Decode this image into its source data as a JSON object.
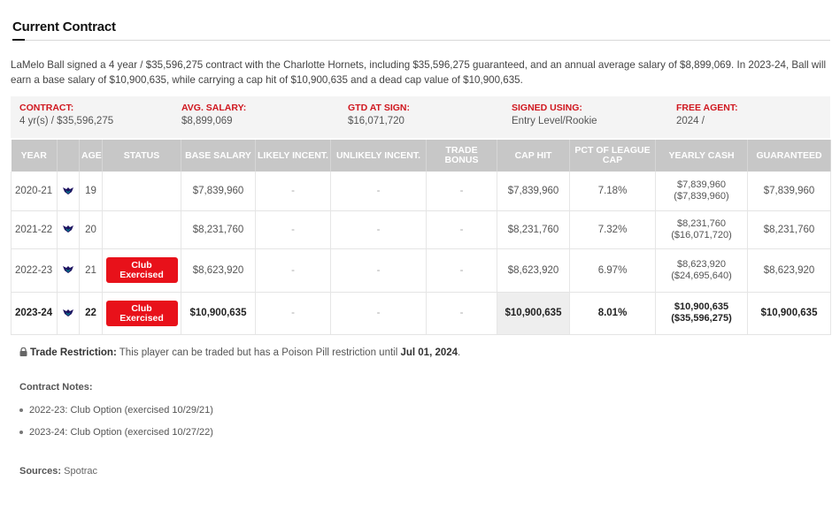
{
  "section_title": "Current Contract",
  "summary": "LaMelo Ball signed a 4 year / $35,596,275 contract with the Charlotte Hornets, including $35,596,275 guaranteed, and an annual average salary of $8,899,069. In 2023-24, Ball will earn a base salary of $10,900,635, while carrying a cap hit of $10,900,635 and a dead cap value of $10,900,635.",
  "info_bar": [
    {
      "label": "CONTRACT:",
      "value": "4 yr(s) / $35,596,275"
    },
    {
      "label": "AVG. SALARY:",
      "value": "$8,899,069"
    },
    {
      "label": "GTD AT SIGN:",
      "value": "$16,071,720"
    },
    {
      "label": "SIGNED USING:",
      "value": "Entry Level/Rookie"
    },
    {
      "label": "FREE AGENT:",
      "value": "2024 /"
    }
  ],
  "table": {
    "headers": [
      "YEAR",
      "",
      "AGE",
      "STATUS",
      "BASE SALARY",
      "LIKELY INCENT.",
      "UNLIKELY INCENT.",
      "TRADE BONUS",
      "CAP HIT",
      "PCT OF LEAGUE CAP",
      "YEARLY CASH",
      "GUARANTEED"
    ],
    "rows": [
      {
        "year": "2020-21",
        "age": "19",
        "status": "",
        "base_salary": "$7,839,960",
        "likely": "-",
        "unlikely": "-",
        "trade_bonus": "-",
        "cap_hit": "$7,839,960",
        "pct_cap": "7.18%",
        "cash": "$7,839,960",
        "cash_cumulative": "($7,839,960)",
        "guaranteed": "$7,839,960"
      },
      {
        "year": "2021-22",
        "age": "20",
        "status": "",
        "base_salary": "$8,231,760",
        "likely": "-",
        "unlikely": "-",
        "trade_bonus": "-",
        "cap_hit": "$8,231,760",
        "pct_cap": "7.32%",
        "cash": "$8,231,760",
        "cash_cumulative": "($16,071,720)",
        "guaranteed": "$8,231,760"
      },
      {
        "year": "2022-23",
        "age": "21",
        "status": "Club Exercised",
        "base_salary": "$8,623,920",
        "likely": "-",
        "unlikely": "-",
        "trade_bonus": "-",
        "cap_hit": "$8,623,920",
        "pct_cap": "6.97%",
        "cash": "$8,623,920",
        "cash_cumulative": "($24,695,640)",
        "guaranteed": "$8,623,920"
      },
      {
        "year": "2023-24",
        "age": "22",
        "status": "Club Exercised",
        "base_salary": "$10,900,635",
        "likely": "-",
        "unlikely": "-",
        "trade_bonus": "-",
        "cap_hit": "$10,900,635",
        "pct_cap": "8.01%",
        "cash": "$10,900,635",
        "cash_cumulative": "($35,596,275)",
        "guaranteed": "$10,900,635"
      }
    ]
  },
  "restriction": {
    "label": "Trade Restriction:",
    "text": " This player can be traded but has a Poison Pill restriction until ",
    "date": "Jul 01, 2024",
    "end": "."
  },
  "notes": {
    "title": "Contract Notes:",
    "items": [
      "2022-23: Club Option (exercised 10/29/21)",
      "2023-24: Club Option (exercised 10/27/22)"
    ]
  },
  "sources": {
    "label": "Sources:",
    "value": " Spotrac"
  },
  "icons": {
    "team": "hornets-logo-icon",
    "lock": "lock-icon"
  },
  "colors": {
    "accent": "#d0171f",
    "badge": "#e8111a",
    "header_bg": "#c7c7c7"
  }
}
